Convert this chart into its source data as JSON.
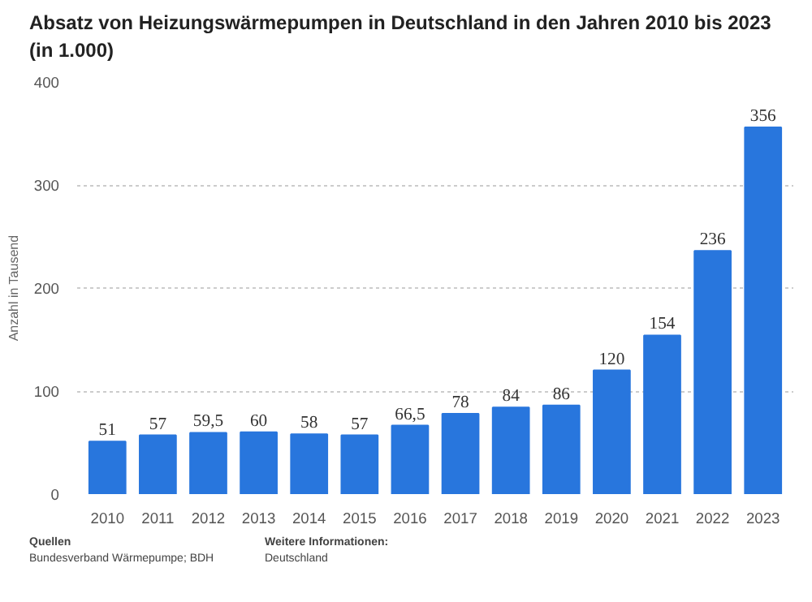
{
  "chart_data": {
    "type": "bar",
    "title": "Absatz von Heizungswärmepumpen in Deutschland in den Jahren 2010 bis 2023 (in 1.000)",
    "ylabel": "Anzahl in Tausend",
    "categories": [
      "2010",
      "2011",
      "2012",
      "2013",
      "2014",
      "2015",
      "2016",
      "2017",
      "2018",
      "2019",
      "2020",
      "2021",
      "2022",
      "2023"
    ],
    "values": [
      51,
      57,
      59.5,
      60,
      58,
      57,
      66.5,
      78,
      84,
      86,
      120,
      154,
      236,
      356
    ],
    "value_labels": [
      "51",
      "57",
      "59,5",
      "60",
      "58",
      "57",
      "66,5",
      "78",
      "84",
      "86",
      "120",
      "154",
      "236",
      "356"
    ],
    "color": "#2876dd",
    "ylim": [
      0,
      400
    ],
    "yticks": [
      0,
      100,
      200,
      300,
      400
    ],
    "grid": "y",
    "annotations": [
      "Quellen",
      "Bundesverband Wärmepumpe; BDH",
      "Weitere Informationen:",
      "Deutschland"
    ]
  }
}
